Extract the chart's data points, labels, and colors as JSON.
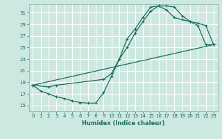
{
  "xlabel": "Humidex (Indice chaleur)",
  "bg_color": "#cde8e0",
  "grid_color": "#b8d8d0",
  "line_color": "#1a6b5a",
  "xlim": [
    -0.5,
    23.5
  ],
  "ylim": [
    14.0,
    32.5
  ],
  "xticks": [
    0,
    1,
    2,
    3,
    4,
    5,
    6,
    7,
    8,
    9,
    10,
    11,
    12,
    13,
    14,
    15,
    16,
    17,
    18,
    19,
    20,
    21,
    22,
    23
  ],
  "yticks": [
    15,
    17,
    19,
    21,
    23,
    25,
    27,
    29,
    31
  ],
  "line1_x": [
    0,
    1,
    2,
    3,
    4,
    5,
    6,
    7,
    8,
    9,
    10,
    11,
    12,
    13,
    14,
    15,
    16,
    17,
    18,
    19,
    20,
    21,
    22,
    23
  ],
  "line1_y": [
    18.5,
    17.5,
    17.0,
    16.5,
    16.2,
    15.8,
    15.5,
    15.4,
    15.4,
    17.2,
    20.0,
    23.0,
    26.5,
    28.2,
    30.2,
    32.0,
    32.2,
    32.2,
    32.0,
    30.5,
    29.5,
    29.2,
    28.8,
    25.5
  ],
  "line2_x": [
    0,
    2,
    3,
    9,
    10,
    11,
    12,
    13,
    14,
    15,
    16,
    17,
    18,
    19,
    20,
    21,
    22,
    23
  ],
  "line2_y": [
    18.5,
    18.2,
    18.5,
    19.5,
    20.5,
    23.0,
    25.0,
    27.5,
    29.5,
    31.3,
    32.2,
    31.5,
    30.2,
    29.8,
    29.5,
    28.8,
    25.5,
    25.5
  ],
  "line3_x": [
    0,
    23
  ],
  "line3_y": [
    18.5,
    25.5
  ]
}
